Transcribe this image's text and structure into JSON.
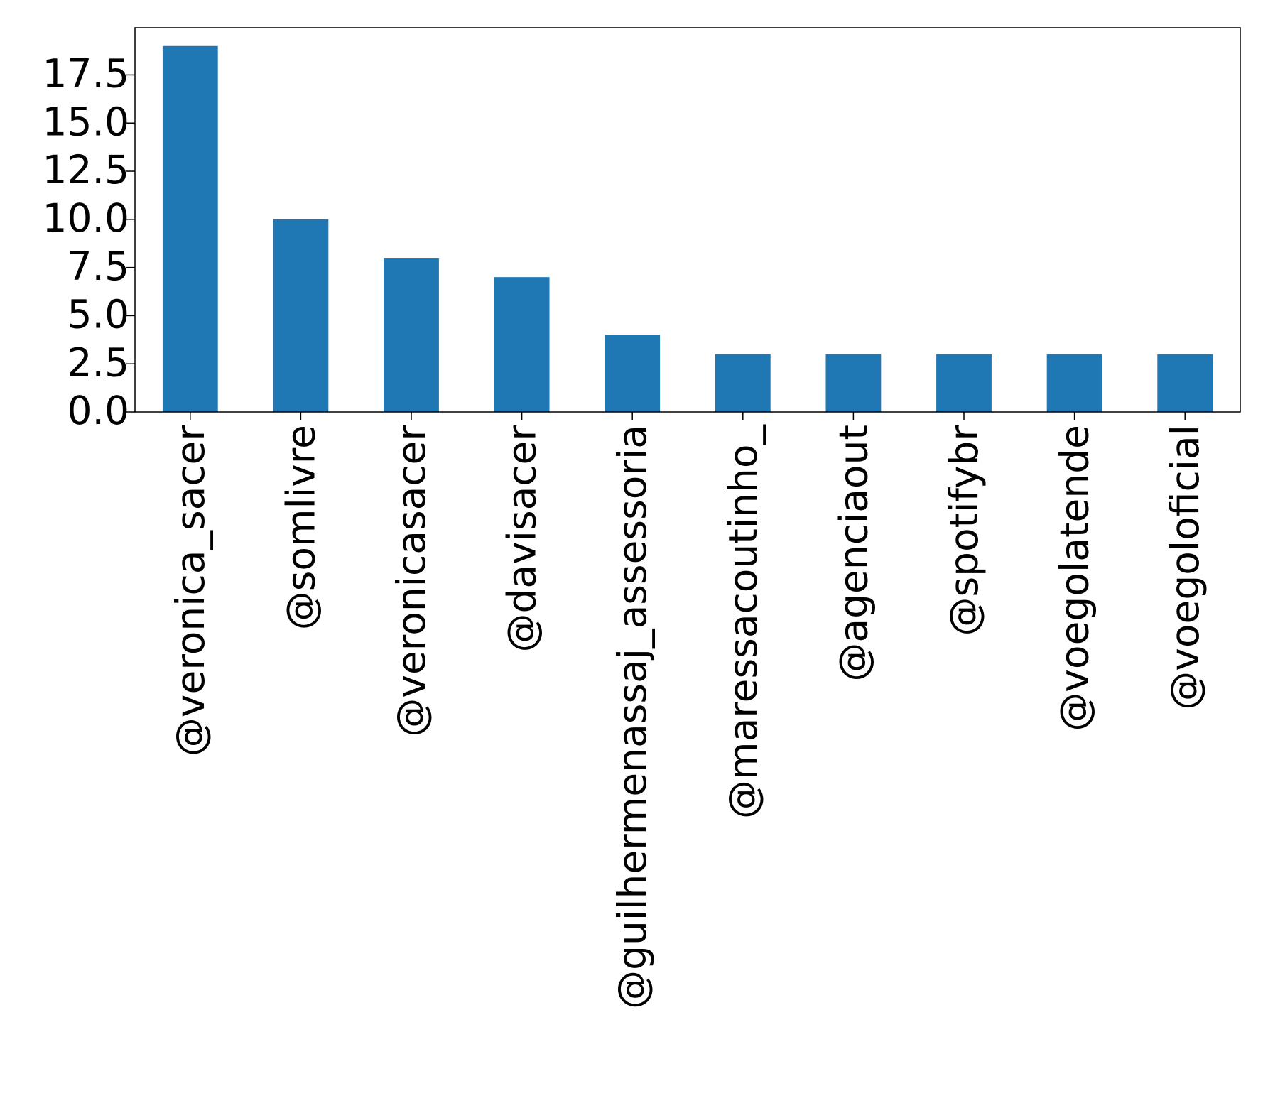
{
  "chart_data": {
    "type": "bar",
    "title": "",
    "xlabel": "",
    "ylabel": "",
    "categories": [
      "@veronica_sacer",
      "@somlivre",
      "@veronicasacer",
      "@davisacer",
      "@guilhermenassaj_assessoria",
      "@maressacoutinho_",
      "@agenciaout",
      "@spotifybr",
      "@voegolatende",
      "@voegoloficial"
    ],
    "values": [
      19,
      10,
      8,
      7,
      4,
      3,
      3,
      3,
      3,
      3
    ],
    "ylim": [
      0,
      19.95
    ],
    "yticks": [
      0.0,
      2.5,
      5.0,
      7.5,
      10.0,
      12.5,
      15.0,
      17.5
    ],
    "ytick_labels": [
      "0.0",
      "2.5",
      "5.0",
      "7.5",
      "10.0",
      "12.5",
      "15.0",
      "17.5"
    ],
    "grid": false,
    "legend": "none",
    "colors": {
      "bar": "#1f77b4",
      "axis": "#000000",
      "background": "#ffffff"
    }
  }
}
